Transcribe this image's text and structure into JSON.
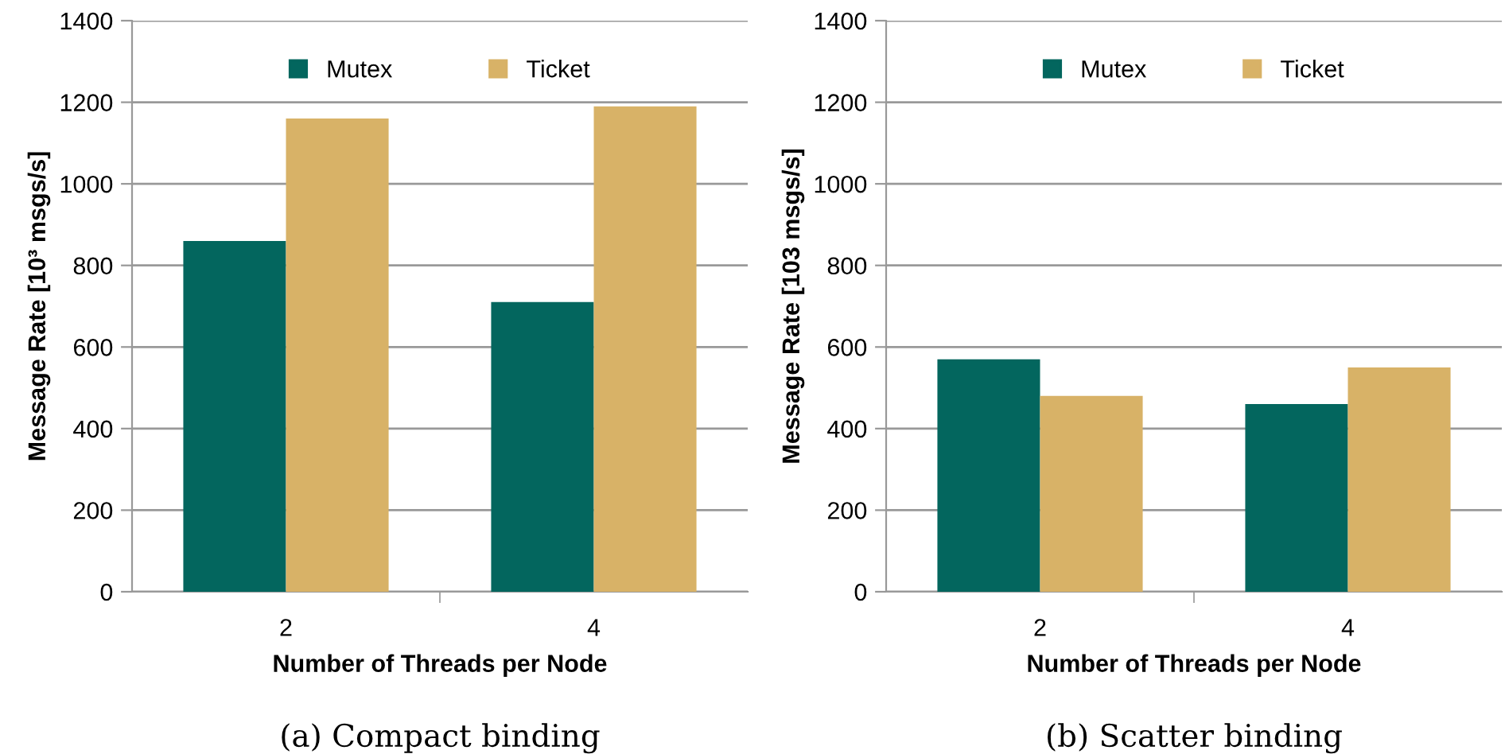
{
  "chart_data": [
    {
      "type": "bar",
      "title": "(a) Compact binding",
      "xlabel": "Number of Threads per Node",
      "ylabel": "Message Rate [10³ msgs/s]",
      "categories": [
        "2",
        "4"
      ],
      "series": [
        {
          "name": "Mutex",
          "color": "#03665e",
          "values": [
            860,
            710
          ]
        },
        {
          "name": "Ticket",
          "color": "#d8b267",
          "values": [
            1160,
            1190
          ]
        }
      ],
      "ylim": [
        0,
        1400
      ],
      "yticks": [
        0,
        200,
        400,
        600,
        800,
        1000,
        1200,
        1400
      ],
      "grid": "y",
      "legend": "top"
    },
    {
      "type": "bar",
      "title": "(b) Scatter binding",
      "xlabel": "Number of Threads per Node",
      "ylabel": "Message Rate [103 msgs/s]",
      "categories": [
        "2",
        "4"
      ],
      "series": [
        {
          "name": "Mutex",
          "color": "#03665e",
          "values": [
            570,
            460
          ]
        },
        {
          "name": "Ticket",
          "color": "#d8b267",
          "values": [
            480,
            550
          ]
        }
      ],
      "ylim": [
        0,
        1400
      ],
      "yticks": [
        0,
        200,
        400,
        600,
        800,
        1000,
        1200,
        1400
      ],
      "grid": "y",
      "legend": "top"
    }
  ]
}
